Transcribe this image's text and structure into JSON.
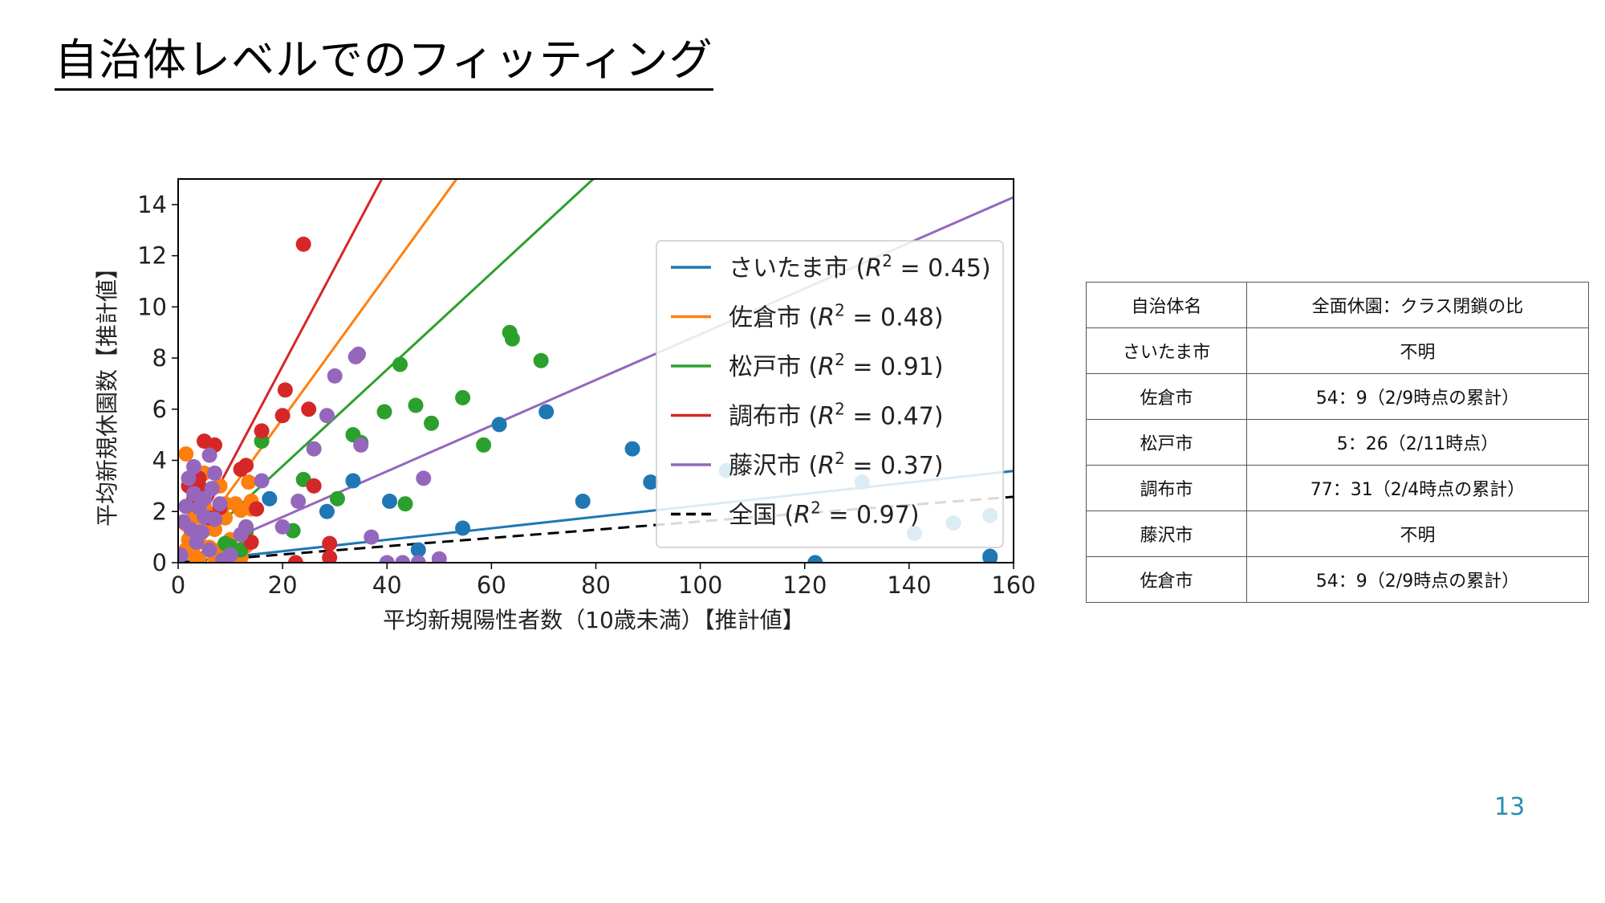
{
  "slide": {
    "title": "自治体レベルでのフィッティング",
    "page_number": "13"
  },
  "table": {
    "headers": [
      "自治体名",
      "全面休園：クラス閉鎖の比"
    ],
    "rows": [
      [
        "さいたま市",
        "不明"
      ],
      [
        "佐倉市",
        "54：9（2/9時点の累計）"
      ],
      [
        "松戸市",
        "5：26（2/11時点）"
      ],
      [
        "調布市",
        "77：31（2/4時点の累計）"
      ],
      [
        "藤沢市",
        "不明"
      ],
      [
        "佐倉市",
        "54：9（2/9時点の累計）"
      ]
    ]
  },
  "chart_data": {
    "type": "scatter",
    "xlabel": "平均新規陽性者数（10歳未満）【推計値】",
    "ylabel": "平均新規休園数【推計値】",
    "xlim": [
      0,
      160
    ],
    "ylim": [
      0,
      15
    ],
    "xticks": [
      0,
      20,
      40,
      60,
      80,
      100,
      120,
      140,
      160
    ],
    "yticks": [
      0,
      2,
      4,
      6,
      8,
      10,
      12,
      14
    ],
    "legend_position": "center-right",
    "grid": false,
    "series": [
      {
        "name": "さいたま市",
        "r2": "0.45",
        "color": "#1f77b4",
        "slope": 0.0224,
        "line_style": "solid",
        "points": [
          [
            17.5,
            2.5
          ],
          [
            28.5,
            2.0
          ],
          [
            33.5,
            3.2
          ],
          [
            40.5,
            2.4
          ],
          [
            46,
            0.5
          ],
          [
            54.5,
            1.35
          ],
          [
            61.5,
            5.4
          ],
          [
            70.5,
            5.9
          ],
          [
            77.5,
            2.4
          ],
          [
            87,
            4.45
          ],
          [
            90.5,
            3.15
          ],
          [
            105,
            3.6
          ],
          [
            122,
            0
          ],
          [
            131,
            3.15
          ],
          [
            141,
            1.15
          ],
          [
            148.5,
            1.55
          ],
          [
            155.5,
            1.85
          ],
          [
            155.5,
            0.25
          ],
          [
            155.5,
            0.2
          ]
        ]
      },
      {
        "name": "佐倉市",
        "r2": "0.48",
        "color": "#ff7f0e",
        "slope": 0.2813,
        "line_style": "solid",
        "points": [
          [
            1.5,
            4.25
          ],
          [
            1.5,
            1.5
          ],
          [
            1.5,
            0.5
          ],
          [
            2,
            0.9
          ],
          [
            2.5,
            1.2
          ],
          [
            3,
            1.8
          ],
          [
            3,
            0.3
          ],
          [
            4,
            2.5
          ],
          [
            4,
            0.1
          ],
          [
            5,
            3.5
          ],
          [
            5,
            2.2
          ],
          [
            5,
            1.4
          ],
          [
            6,
            0.6
          ],
          [
            6,
            1.9
          ],
          [
            7,
            1.3
          ],
          [
            7,
            0.2
          ],
          [
            8,
            3.0
          ],
          [
            8,
            0.5
          ],
          [
            9,
            1.75
          ],
          [
            9,
            2.3
          ],
          [
            10,
            0.9
          ],
          [
            11,
            2.3
          ],
          [
            12,
            0.2
          ],
          [
            12,
            2.05
          ],
          [
            13,
            0.65
          ],
          [
            13,
            1.4
          ],
          [
            13.5,
            3.15
          ],
          [
            14,
            2.1
          ],
          [
            14,
            2.4
          ],
          [
            4,
            0.8
          ],
          [
            3,
            2.7
          ]
        ]
      },
      {
        "name": "松戸市",
        "r2": "0.91",
        "color": "#2ca02c",
        "slope": 0.1887,
        "line_style": "solid",
        "points": [
          [
            9,
            0.75
          ],
          [
            10,
            0.65
          ],
          [
            12,
            0.5
          ],
          [
            13,
            1.2
          ],
          [
            16,
            4.75
          ],
          [
            22,
            1.25
          ],
          [
            24,
            3.25
          ],
          [
            30.5,
            2.5
          ],
          [
            33.5,
            5.0
          ],
          [
            35,
            4.7
          ],
          [
            39.5,
            5.9
          ],
          [
            42.5,
            7.75
          ],
          [
            43.5,
            2.3
          ],
          [
            45.5,
            6.15
          ],
          [
            48.5,
            5.45
          ],
          [
            54.5,
            6.45
          ],
          [
            58.5,
            4.6
          ],
          [
            63.5,
            9.0
          ],
          [
            64,
            8.75
          ],
          [
            69.5,
            7.9
          ]
        ]
      },
      {
        "name": "調布市",
        "r2": "0.47",
        "color": "#d62728",
        "slope": 0.3846,
        "line_style": "solid",
        "points": [
          [
            2,
            3.0
          ],
          [
            3,
            2.5
          ],
          [
            4,
            3.3
          ],
          [
            4,
            3.0
          ],
          [
            5,
            4.75
          ],
          [
            6,
            1.75
          ],
          [
            7,
            4.6
          ],
          [
            8,
            2.15
          ],
          [
            12,
            3.65
          ],
          [
            13,
            3.8
          ],
          [
            14,
            0.8
          ],
          [
            15,
            2.1
          ],
          [
            16,
            5.15
          ],
          [
            20,
            5.75
          ],
          [
            20.5,
            6.75
          ],
          [
            22.5,
            0
          ],
          [
            24,
            12.45
          ],
          [
            25,
            6.0
          ],
          [
            26,
            3.0
          ],
          [
            29,
            0.75
          ],
          [
            29,
            0.2
          ]
        ]
      },
      {
        "name": "藤沢市",
        "r2": "0.37",
        "color": "#9467bd",
        "slope": 0.0893,
        "line_style": "solid",
        "points": [
          [
            0.5,
            0.3
          ],
          [
            1,
            1.6
          ],
          [
            1.5,
            2.2
          ],
          [
            2,
            3.3
          ],
          [
            2.5,
            1.3
          ],
          [
            3,
            3.75
          ],
          [
            3,
            2.7
          ],
          [
            3.5,
            0.8
          ],
          [
            4,
            2.15
          ],
          [
            4.5,
            1.2
          ],
          [
            5,
            2.5
          ],
          [
            5,
            1.8
          ],
          [
            6,
            4.2
          ],
          [
            6,
            0.5
          ],
          [
            6.5,
            2.9
          ],
          [
            7,
            3.5
          ],
          [
            7,
            1.7
          ],
          [
            8,
            2.3
          ],
          [
            8.5,
            0.1
          ],
          [
            10,
            0.3
          ],
          [
            12,
            1.1
          ],
          [
            13,
            1.4
          ],
          [
            16,
            3.2
          ],
          [
            20,
            1.4
          ],
          [
            23,
            2.4
          ],
          [
            26,
            4.45
          ],
          [
            28.5,
            5.75
          ],
          [
            30,
            7.3
          ],
          [
            34,
            8.05
          ],
          [
            34.5,
            8.15
          ],
          [
            35,
            4.6
          ],
          [
            37,
            1.0
          ],
          [
            40,
            0
          ],
          [
            43,
            0
          ],
          [
            46,
            0
          ],
          [
            47,
            3.3
          ],
          [
            50,
            0.15
          ]
        ]
      },
      {
        "name": "全国",
        "r2": "0.97",
        "color": "#000000",
        "slope": 0.0161,
        "line_style": "dashed",
        "points": []
      }
    ]
  }
}
